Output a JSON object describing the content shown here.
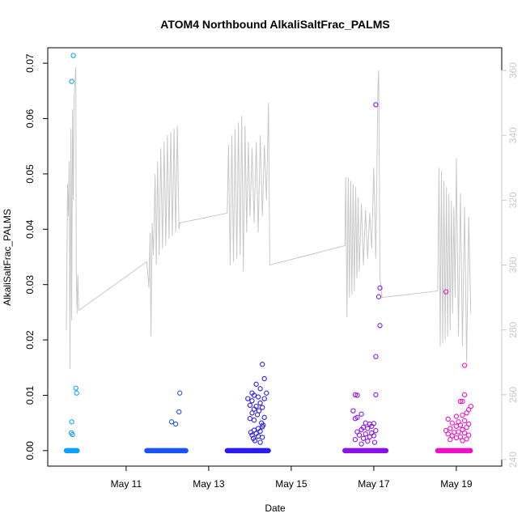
{
  "chart_data": {
    "type": "scatter",
    "title": "ATOM4 Northbound AlkaliSaltFrac_PALMS",
    "xlabel": "Date",
    "ylabel": "AlkaliSaltFrac_PALMS",
    "x_unit": "day of May",
    "xlim": [
      9.1,
      20.1
    ],
    "ylim": [
      -0.0028,
      0.0728
    ],
    "y_ticks": [
      0.0,
      0.01,
      0.02,
      0.03,
      0.04,
      0.05,
      0.06,
      0.07
    ],
    "y_tick_labels": [
      "0.00",
      "0.01",
      "0.02",
      "0.03",
      "0.04",
      "0.05",
      "0.06",
      "0.07"
    ],
    "x_ticks": [
      11,
      13,
      15,
      17,
      19
    ],
    "x_tick_labels": [
      "May 11",
      "May 13",
      "May 15",
      "May 17",
      "May 19"
    ],
    "right_axis": {
      "ylim": [
        238,
        367
      ],
      "ticks": [
        240,
        260,
        280,
        300,
        320,
        340,
        360
      ],
      "tick_labels": [
        "240",
        "260",
        "280",
        "300",
        "320",
        "340",
        "360"
      ],
      "color": "#c8c8c8"
    },
    "grid": false,
    "marker": "open-circle",
    "series": [
      {
        "color": "#0aa0ff",
        "zero_range": [
          9.55,
          9.82
        ],
        "points": [
          [
            9.72,
            0.0714
          ],
          [
            9.68,
            0.0667
          ],
          [
            9.78,
            0.0113
          ],
          [
            9.8,
            0.0104
          ],
          [
            9.68,
            0.0052
          ],
          [
            9.67,
            0.0032
          ],
          [
            9.7,
            0.0029
          ]
        ]
      },
      {
        "color": "#1a55f8",
        "zero_range": [
          11.5,
          12.45
        ],
        "points": [
          [
            12.3,
            0.0104
          ],
          [
            12.28,
            0.007
          ],
          [
            12.1,
            0.0052
          ],
          [
            12.2,
            0.0048
          ]
        ]
      },
      {
        "color": "#2a1cf0",
        "zero_range": [
          13.45,
          14.45
        ],
        "points": [
          [
            14.3,
            0.0156
          ],
          [
            14.35,
            0.013
          ],
          [
            14.15,
            0.012
          ],
          [
            14.25,
            0.0112
          ],
          [
            14.05,
            0.0104
          ],
          [
            14.4,
            0.0104
          ],
          [
            14.1,
            0.01
          ],
          [
            14.2,
            0.0097
          ],
          [
            13.95,
            0.0094
          ],
          [
            14.35,
            0.0094
          ],
          [
            14.05,
            0.009
          ],
          [
            14.25,
            0.0086
          ],
          [
            14.0,
            0.0082
          ],
          [
            14.15,
            0.008
          ],
          [
            14.3,
            0.0078
          ],
          [
            14.1,
            0.0075
          ],
          [
            14.22,
            0.0072
          ],
          [
            14.05,
            0.0068
          ],
          [
            14.18,
            0.0065
          ],
          [
            14.35,
            0.006
          ],
          [
            14.0,
            0.0058
          ],
          [
            14.1,
            0.0055
          ],
          [
            14.28,
            0.005
          ],
          [
            14.32,
            0.0046
          ],
          [
            14.3,
            0.0043
          ],
          [
            14.2,
            0.004
          ],
          [
            14.1,
            0.0037
          ],
          [
            14.25,
            0.0035
          ],
          [
            14.02,
            0.0033
          ],
          [
            14.15,
            0.0031
          ],
          [
            14.05,
            0.0028
          ],
          [
            14.2,
            0.0026
          ],
          [
            14.3,
            0.0024
          ],
          [
            14.08,
            0.0022
          ],
          [
            14.12,
            0.0018
          ],
          [
            14.25,
            0.0015
          ]
        ]
      },
      {
        "color": "#8a12e8",
        "zero_range": [
          16.3,
          17.3
        ],
        "points": [
          [
            17.05,
            0.0625
          ],
          [
            17.15,
            0.0294
          ],
          [
            17.12,
            0.0278
          ],
          [
            17.15,
            0.0226
          ],
          [
            17.05,
            0.017
          ],
          [
            16.55,
            0.0101
          ],
          [
            16.6,
            0.01
          ],
          [
            17.05,
            0.0101
          ],
          [
            16.5,
            0.0072
          ],
          [
            16.7,
            0.0066
          ],
          [
            16.6,
            0.006
          ],
          [
            16.55,
            0.0058
          ],
          [
            16.8,
            0.005
          ],
          [
            16.9,
            0.0048
          ],
          [
            17.0,
            0.0049
          ],
          [
            16.95,
            0.0044
          ],
          [
            16.75,
            0.0042
          ],
          [
            16.85,
            0.004
          ],
          [
            16.7,
            0.0038
          ],
          [
            17.05,
            0.0036
          ],
          [
            16.6,
            0.0034
          ],
          [
            16.95,
            0.0032
          ],
          [
            16.8,
            0.003
          ],
          [
            16.65,
            0.0028
          ],
          [
            17.0,
            0.0027
          ],
          [
            16.9,
            0.0025
          ],
          [
            16.75,
            0.0022
          ],
          [
            16.55,
            0.002
          ],
          [
            16.85,
            0.0017
          ],
          [
            17.02,
            0.0015
          ],
          [
            16.7,
            0.0012
          ]
        ]
      },
      {
        "color": "#f010c8",
        "zero_range": [
          18.55,
          19.35
        ],
        "points": [
          [
            18.75,
            0.0287
          ],
          [
            19.2,
            0.0154
          ],
          [
            19.2,
            0.0101
          ],
          [
            19.15,
            0.0089
          ],
          [
            19.1,
            0.0089
          ],
          [
            19.35,
            0.008
          ],
          [
            19.3,
            0.0074
          ],
          [
            19.25,
            0.0068
          ],
          [
            19.15,
            0.0064
          ],
          [
            19.0,
            0.0062
          ],
          [
            18.8,
            0.0057
          ],
          [
            19.2,
            0.0054
          ],
          [
            19.05,
            0.0052
          ],
          [
            18.9,
            0.005
          ],
          [
            19.3,
            0.0048
          ],
          [
            19.1,
            0.0046
          ],
          [
            19.0,
            0.0044
          ],
          [
            19.25,
            0.0042
          ],
          [
            18.85,
            0.004
          ],
          [
            19.15,
            0.0038
          ],
          [
            18.75,
            0.0036
          ],
          [
            19.05,
            0.0034
          ],
          [
            18.95,
            0.0033
          ],
          [
            19.2,
            0.0032
          ],
          [
            18.8,
            0.003
          ],
          [
            19.3,
            0.0028
          ],
          [
            18.9,
            0.0027
          ],
          [
            19.1,
            0.0025
          ],
          [
            19.0,
            0.0023
          ],
          [
            19.25,
            0.0021
          ],
          [
            18.85,
            0.002
          ],
          [
            19.15,
            0.0018
          ]
        ]
      }
    ],
    "line_series": {
      "color": "#c8c8c8",
      "axis": "right",
      "points": [
        [
          9.55,
          280
        ],
        [
          9.58,
          325
        ],
        [
          9.6,
          315
        ],
        [
          9.62,
          332
        ],
        [
          9.64,
          268
        ],
        [
          9.66,
          342
        ],
        [
          9.68,
          283
        ],
        [
          9.7,
          348
        ],
        [
          9.72,
          320
        ],
        [
          9.74,
          352
        ],
        [
          9.76,
          357
        ],
        [
          9.78,
          361
        ],
        [
          9.79,
          300
        ],
        [
          9.81,
          285
        ],
        [
          9.83,
          297
        ],
        [
          9.85,
          286
        ],
        [
          11.5,
          301
        ],
        [
          11.55,
          293
        ],
        [
          11.58,
          310
        ],
        [
          11.6,
          278
        ],
        [
          11.63,
          313
        ],
        [
          11.66,
          303
        ],
        [
          11.7,
          328
        ],
        [
          11.73,
          300
        ],
        [
          11.76,
          332
        ],
        [
          11.8,
          303
        ],
        [
          11.84,
          336
        ],
        [
          11.88,
          305
        ],
        [
          11.92,
          338
        ],
        [
          11.96,
          306
        ],
        [
          12.0,
          340
        ],
        [
          12.04,
          308
        ],
        [
          12.08,
          341
        ],
        [
          12.12,
          309
        ],
        [
          12.16,
          342
        ],
        [
          12.2,
          310
        ],
        [
          12.24,
          343
        ],
        [
          12.28,
          311
        ],
        [
          12.3,
          313
        ],
        [
          13.45,
          316
        ],
        [
          13.48,
          337
        ],
        [
          13.52,
          300
        ],
        [
          13.56,
          340
        ],
        [
          13.6,
          301
        ],
        [
          13.64,
          342
        ],
        [
          13.68,
          302
        ],
        [
          13.72,
          344
        ],
        [
          13.76,
          303
        ],
        [
          13.8,
          346
        ],
        [
          13.84,
          298
        ],
        [
          13.88,
          343
        ],
        [
          13.92,
          310
        ],
        [
          13.96,
          338
        ],
        [
          14.0,
          315
        ],
        [
          14.05,
          336
        ],
        [
          14.1,
          313
        ],
        [
          14.15,
          338
        ],
        [
          14.2,
          310
        ],
        [
          14.25,
          340
        ],
        [
          14.3,
          315
        ],
        [
          14.35,
          337
        ],
        [
          14.4,
          320
        ],
        [
          14.45,
          350
        ],
        [
          14.48,
          300
        ],
        [
          16.3,
          306
        ],
        [
          16.32,
          327
        ],
        [
          16.35,
          284
        ],
        [
          16.38,
          327
        ],
        [
          16.41,
          290
        ],
        [
          16.44,
          326
        ],
        [
          16.47,
          291
        ],
        [
          16.5,
          325
        ],
        [
          16.53,
          292
        ],
        [
          16.56,
          324
        ],
        [
          16.59,
          296
        ],
        [
          16.62,
          321
        ],
        [
          16.65,
          298
        ],
        [
          16.7,
          319
        ],
        [
          16.75,
          300
        ],
        [
          16.8,
          317
        ],
        [
          16.85,
          302
        ],
        [
          16.9,
          316
        ],
        [
          16.95,
          305
        ],
        [
          17.0,
          330
        ],
        [
          17.05,
          302
        ],
        [
          17.1,
          355
        ],
        [
          17.12,
          360
        ],
        [
          17.15,
          296
        ],
        [
          17.2,
          290
        ],
        [
          18.55,
          292
        ],
        [
          18.58,
          330
        ],
        [
          18.61,
          275
        ],
        [
          18.64,
          329
        ],
        [
          18.67,
          276
        ],
        [
          18.7,
          326
        ],
        [
          18.73,
          277
        ],
        [
          18.76,
          324
        ],
        [
          18.79,
          278
        ],
        [
          18.82,
          322
        ],
        [
          18.85,
          280
        ],
        [
          18.88,
          320
        ],
        [
          18.91,
          285
        ],
        [
          18.94,
          318
        ],
        [
          18.97,
          290
        ],
        [
          19.0,
          333
        ],
        [
          19.05,
          278
        ],
        [
          19.1,
          322
        ],
        [
          19.15,
          275
        ],
        [
          19.2,
          318
        ],
        [
          19.25,
          270
        ],
        [
          19.3,
          315
        ],
        [
          19.35,
          285
        ]
      ]
    }
  }
}
